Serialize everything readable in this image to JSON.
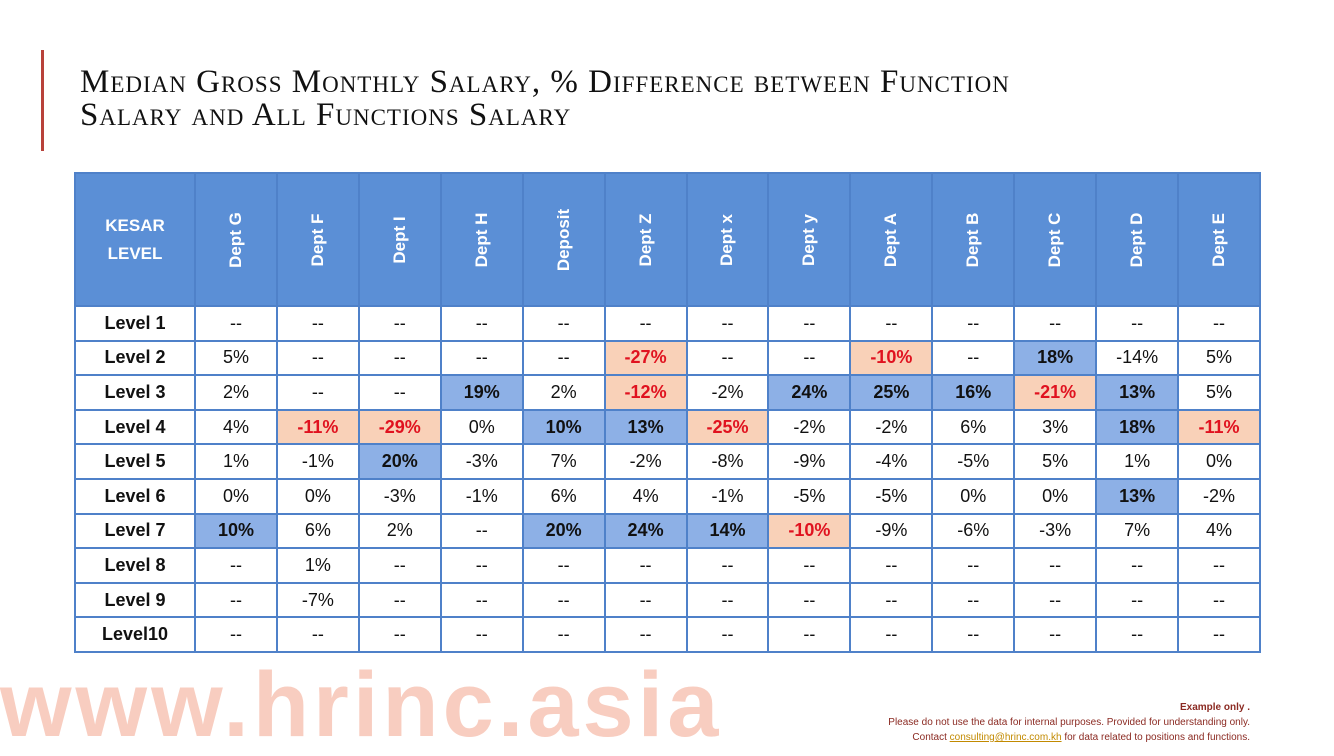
{
  "title": {
    "line1": "Median Gross Monthly Salary, % Difference between Function",
    "line2": "Salary and All Functions Salary"
  },
  "table": {
    "corner": "KESAR\nLEVEL",
    "corner_line1": "KESAR",
    "corner_line2": "LEVEL",
    "columns": [
      "Dept G",
      "Dept F",
      "Dept I",
      "Dept H",
      "Deposit",
      "Dept Z",
      "Dept x",
      "Dept y",
      "Dept A",
      "Dept B",
      "Dept C",
      "Dept D",
      "Dept E"
    ],
    "rows": [
      {
        "label": "Level 1",
        "cells": [
          "--",
          "--",
          "--",
          "--",
          "--",
          "--",
          "--",
          "--",
          "--",
          "--",
          "--",
          "--",
          "--"
        ],
        "hl": [
          "",
          "",
          "",
          "",
          "",
          "",
          "",
          "",
          "",
          "",
          "",
          "",
          ""
        ]
      },
      {
        "label": "Level 2",
        "cells": [
          "5%",
          "--",
          "--",
          "--",
          "--",
          "-27%",
          "--",
          "--",
          "-10%",
          "--",
          "18%",
          "-14%",
          "5%"
        ],
        "hl": [
          "",
          "",
          "",
          "",
          "",
          "peach",
          "",
          "",
          "peach",
          "",
          "blue",
          "",
          ""
        ]
      },
      {
        "label": "Level 3",
        "cells": [
          "2%",
          "--",
          "--",
          "19%",
          "2%",
          "-12%",
          "-2%",
          "24%",
          "25%",
          "16%",
          "-21%",
          "13%",
          "5%"
        ],
        "hl": [
          "",
          "",
          "",
          "blue",
          "",
          "peach",
          "",
          "blue",
          "blue",
          "blue",
          "peach",
          "blue",
          ""
        ]
      },
      {
        "label": "Level 4",
        "cells": [
          "4%",
          "-11%",
          "-29%",
          "0%",
          "10%",
          "13%",
          "-25%",
          "-2%",
          "-2%",
          "6%",
          "3%",
          "18%",
          "-11%"
        ],
        "hl": [
          "",
          "peach",
          "peach",
          "",
          "blue",
          "blue",
          "peach",
          "",
          "",
          "",
          "",
          "blue",
          "peach"
        ]
      },
      {
        "label": "Level 5",
        "cells": [
          "1%",
          "-1%",
          "20%",
          "-3%",
          "7%",
          "-2%",
          "-8%",
          "-9%",
          "-4%",
          "-5%",
          "5%",
          "1%",
          "0%"
        ],
        "hl": [
          "",
          "",
          "blue",
          "",
          "",
          "",
          "",
          "",
          "",
          "",
          "",
          "",
          ""
        ]
      },
      {
        "label": "Level 6",
        "cells": [
          "0%",
          "0%",
          "-3%",
          "-1%",
          "6%",
          "4%",
          "-1%",
          "-5%",
          "-5%",
          "0%",
          "0%",
          "13%",
          "-2%"
        ],
        "hl": [
          "",
          "",
          "",
          "",
          "",
          "",
          "",
          "",
          "",
          "",
          "",
          "blue",
          ""
        ]
      },
      {
        "label": "Level 7",
        "cells": [
          "10%",
          "6%",
          "2%",
          "--",
          "20%",
          "24%",
          "14%",
          "-10%",
          "-9%",
          "-6%",
          "-3%",
          "7%",
          "4%"
        ],
        "hl": [
          "blue",
          "",
          "",
          "",
          "blue",
          "blue",
          "blue",
          "peach",
          "",
          "",
          "",
          "",
          ""
        ]
      },
      {
        "label": "Level 8",
        "cells": [
          "--",
          "1%",
          "--",
          "--",
          "--",
          "--",
          "--",
          "--",
          "--",
          "--",
          "--",
          "--",
          "--"
        ],
        "hl": [
          "",
          "",
          "",
          "",
          "",
          "",
          "",
          "",
          "",
          "",
          "",
          "",
          ""
        ]
      },
      {
        "label": "Level 9",
        "cells": [
          "--",
          "-7%",
          "--",
          "--",
          "--",
          "--",
          "--",
          "--",
          "--",
          "--",
          "--",
          "--",
          "--"
        ],
        "hl": [
          "",
          "",
          "",
          "",
          "",
          "",
          "",
          "",
          "",
          "",
          "",
          "",
          ""
        ]
      },
      {
        "label": "Level10",
        "cells": [
          "--",
          "--",
          "--",
          "--",
          "--",
          "--",
          "--",
          "--",
          "--",
          "--",
          "--",
          "--",
          "--"
        ],
        "hl": [
          "",
          "",
          "",
          "",
          "",
          "",
          "",
          "",
          "",
          "",
          "",
          "",
          ""
        ]
      }
    ]
  },
  "watermark": "www.hrinc.asia",
  "footer": {
    "line1": "Example only .",
    "line2": "Please do not use the data for internal purposes.  Provided for understanding only.",
    "line3_prefix": "Contact ",
    "email": "consulting@hrinc.com.kh",
    "line3_suffix": " for data related to positions and functions."
  },
  "colors": {
    "header_blue": "#5b8fd6",
    "highlight_blue": "#8db0e6",
    "highlight_peach": "#f9d1b8",
    "negative_red": "#e0121f",
    "accent": "#b8413a"
  }
}
